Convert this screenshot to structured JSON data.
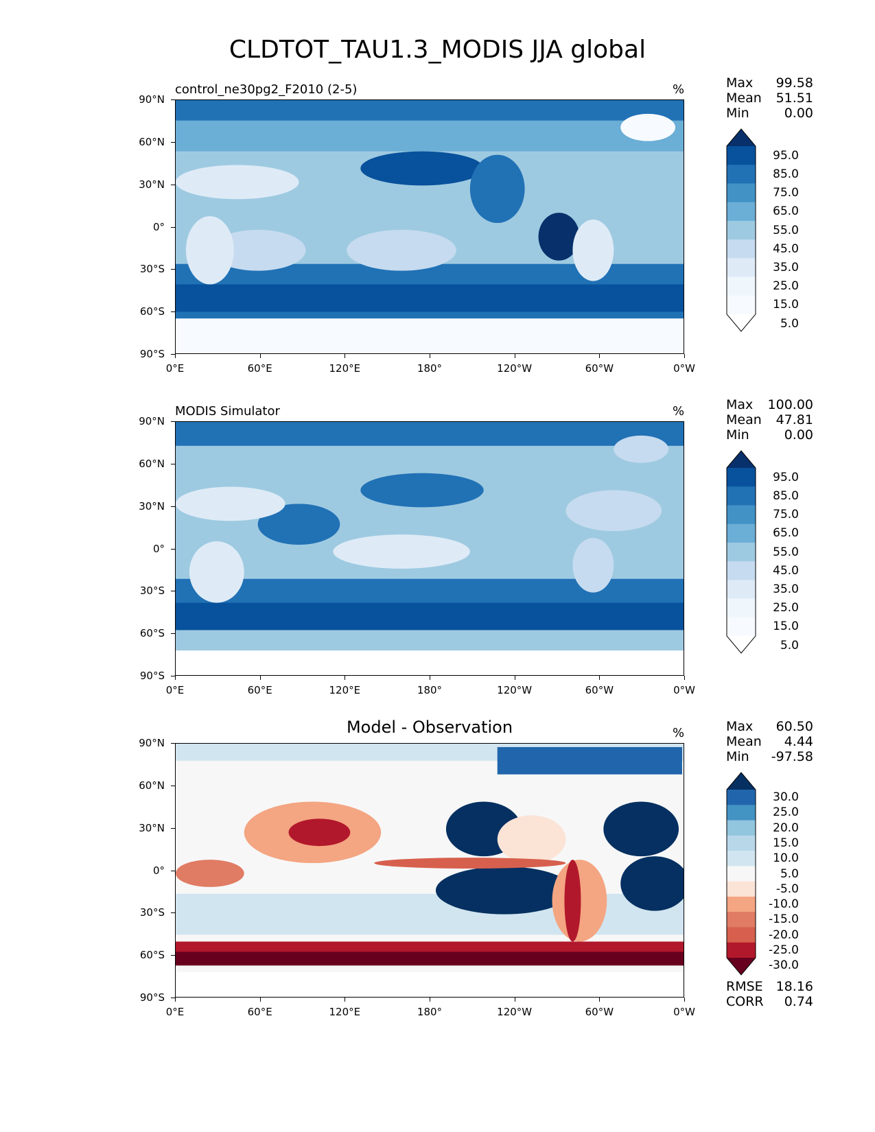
{
  "title": "CLDTOT_TAU1.3_MODIS JJA global",
  "lat_ticks": [
    "90°N",
    "60°N",
    "30°N",
    "0°",
    "30°S",
    "60°S",
    "90°S"
  ],
  "lon_ticks": [
    "0°E",
    "60°E",
    "120°E",
    "180°",
    "120°W",
    "60°W",
    "0°W"
  ],
  "panels": [
    {
      "title_left": "control_ne30pg2_F2010 (2-5)",
      "title_center": "",
      "unit": "%",
      "stats": {
        "max_label": "Max",
        "max": "99.58",
        "mean_label": "Mean",
        "mean": "51.51",
        "min_label": "Min",
        "min": "0.00"
      },
      "colorbar": {
        "labels": [
          "95.0",
          "85.0",
          "75.0",
          "65.0",
          "55.0",
          "45.0",
          "35.0",
          "25.0",
          "15.0",
          "5.0"
        ],
        "colors": [
          "#08306b",
          "#08519c",
          "#2171b5",
          "#4292c6",
          "#6baed6",
          "#9ecae1",
          "#c6dbef",
          "#deebf7",
          "#eff6fc",
          "#f7fbff",
          "#ffffff"
        ]
      }
    },
    {
      "title_left": "MODIS Simulator",
      "title_center": "",
      "unit": "%",
      "stats": {
        "max_label": "Max",
        "max": "100.00",
        "mean_label": "Mean",
        "mean": "47.81",
        "min_label": "Min",
        "min": "0.00"
      },
      "colorbar": {
        "labels": [
          "95.0",
          "85.0",
          "75.0",
          "65.0",
          "55.0",
          "45.0",
          "35.0",
          "25.0",
          "15.0",
          "5.0"
        ],
        "colors": [
          "#08306b",
          "#08519c",
          "#2171b5",
          "#4292c6",
          "#6baed6",
          "#9ecae1",
          "#c6dbef",
          "#deebf7",
          "#eff6fc",
          "#f7fbff",
          "#ffffff"
        ]
      }
    },
    {
      "title_left": "",
      "title_center": "Model - Observation",
      "unit": "%",
      "stats": {
        "max_label": "Max",
        "max": "60.50",
        "mean_label": "Mean",
        "mean": "4.44",
        "min_label": "Min",
        "min": "-97.58"
      },
      "colorbar": {
        "labels": [
          "30.0",
          "25.0",
          "20.0",
          "15.0",
          "10.0",
          "5.0",
          "-5.0",
          "-10.0",
          "-15.0",
          "-20.0",
          "-25.0",
          "-30.0"
        ],
        "colors": [
          "#053061",
          "#2166ac",
          "#4393c3",
          "#92c5de",
          "#b8d8ea",
          "#d1e5f0",
          "#f7f7f7",
          "#fbe3d6",
          "#f4a582",
          "#e07b64",
          "#d6604d",
          "#b2182b",
          "#67001f"
        ]
      }
    }
  ],
  "metrics": {
    "rmse_label": "RMSE",
    "rmse": "18.16",
    "corr_label": "CORR",
    "corr": "0.74"
  }
}
